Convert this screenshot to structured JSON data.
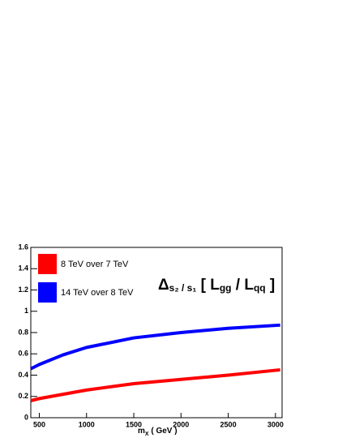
{
  "chart_data": {
    "type": "line",
    "annotation": [
      "Δ",
      "s₂ / s₁",
      " [ L",
      "gg",
      " / L",
      "qq",
      " ]"
    ],
    "x_label": [
      "m",
      "X",
      " ( GeV )"
    ],
    "x": [
      410,
      500,
      750,
      1000,
      1500,
      2000,
      2500,
      3050
    ],
    "series": [
      {
        "name": "8 TeV over 7 TeV",
        "color": "#ff0000",
        "values": [
          0.16,
          0.18,
          0.22,
          0.26,
          0.32,
          0.36,
          0.4,
          0.45
        ]
      },
      {
        "name": "14 TeV over 8 TeV",
        "color": "#0000ff",
        "values": [
          0.46,
          0.5,
          0.59,
          0.66,
          0.75,
          0.8,
          0.84,
          0.87
        ]
      }
    ],
    "xlim": [
      410,
      3070
    ],
    "xticks": [
      500,
      1000,
      1500,
      2000,
      2500,
      3000
    ],
    "ylim": [
      0,
      1.6
    ],
    "yticks": [
      0,
      0.2,
      0.4,
      0.6,
      0.8,
      1,
      1.2,
      1.4,
      1.6
    ],
    "legend": "upper left"
  }
}
